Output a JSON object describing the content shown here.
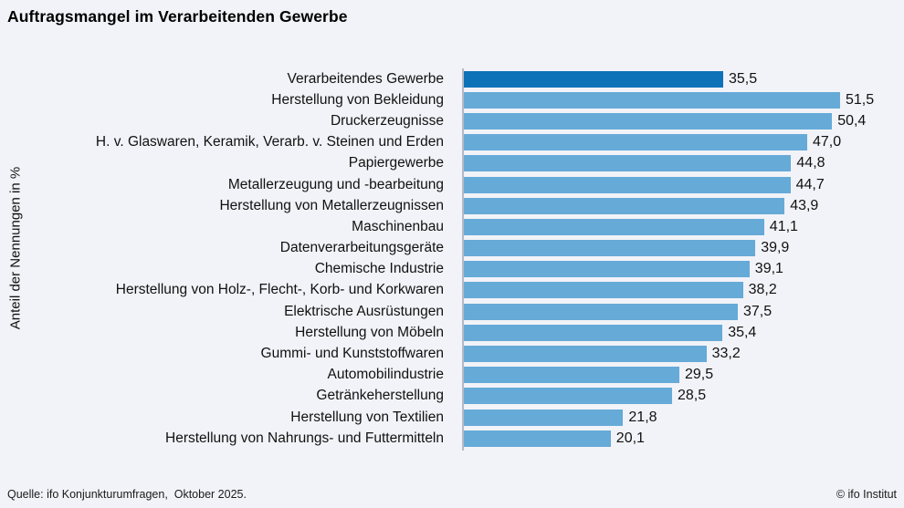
{
  "title": "Auftragsmangel im Verarbeitenden Gewerbe",
  "ylabel": "Anteil der Nennungen in %",
  "footer": {
    "source": "Quelle: ifo Konjunkturumfragen,  Oktober 2025.",
    "copyright": "© ifo Institut"
  },
  "colors": {
    "background": "#f2f3f8",
    "highlight_bar": "#0e72b8",
    "bar": "#66aad8",
    "axis": "#b5b9c3",
    "text": "#111111"
  },
  "chart_data": {
    "type": "bar",
    "orientation": "horizontal",
    "title": "Auftragsmangel im Verarbeitenden Gewerbe",
    "ylabel": "Anteil der Nennungen in %",
    "unit": "%",
    "xlim": [
      0,
      60
    ],
    "grid": false,
    "legend": false,
    "highlight_index": 0,
    "categories": [
      "Verarbeitendes Gewerbe",
      "Herstellung von Bekleidung",
      "Druckerzeugnisse",
      "H. v. Glaswaren, Keramik, Verarb. v. Steinen und Erden",
      "Papiergewerbe",
      "Metallerzeugung und -bearbeitung",
      "Herstellung von Metallerzeugnissen",
      "Maschinenbau",
      "Datenverarbeitungsgeräte",
      "Chemische Industrie",
      "Herstellung von Holz-, Flecht-, Korb- und Korkwaren",
      "Elektrische Ausrüstungen",
      "Herstellung von Möbeln",
      "Gummi- und Kunststoffwaren",
      "Automobilindustrie",
      "Getränkeherstellung",
      "Herstellung von Textilien",
      "Herstellung von Nahrungs- und Futtermitteln"
    ],
    "values": [
      35.5,
      51.5,
      50.4,
      47.0,
      44.8,
      44.7,
      43.9,
      41.1,
      39.9,
      39.1,
      38.2,
      37.5,
      35.4,
      33.2,
      29.5,
      28.5,
      21.8,
      20.1
    ],
    "value_labels": [
      "35,5",
      "51,5",
      "50,4",
      "47,0",
      "44,8",
      "44,7",
      "43,9",
      "41,1",
      "39,9",
      "39,1",
      "38,2",
      "37,5",
      "35,4",
      "33,2",
      "29,5",
      "28,5",
      "21,8",
      "20,1"
    ]
  }
}
